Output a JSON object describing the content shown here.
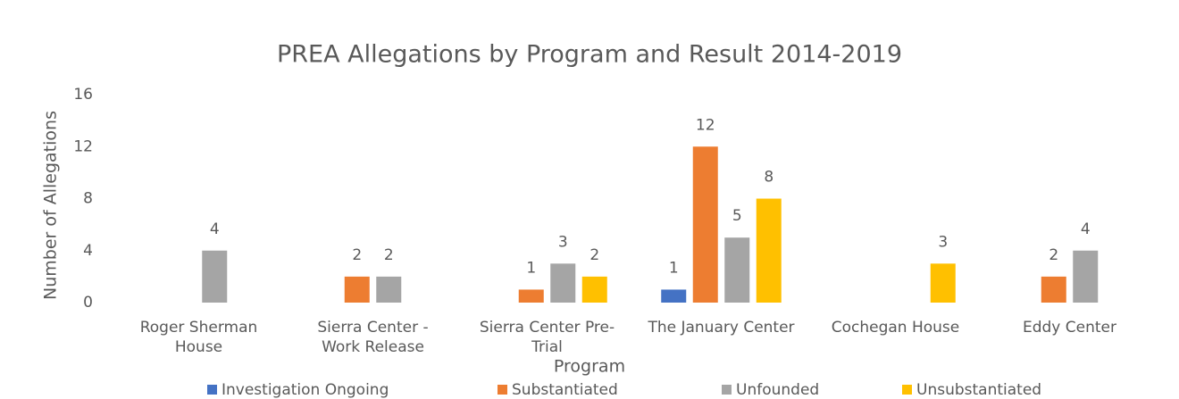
{
  "chart_data": {
    "type": "bar",
    "title": "PREA Allegations by Program and Result 2014-2019",
    "x_label": "Program",
    "y_label": "Number of Allegations",
    "categories": [
      "Roger Sherman House",
      "Sierra Center - Work Release",
      "Sierra Center Pre-Trial",
      "The January Center",
      "Cochegan House",
      "Eddy Center"
    ],
    "series": [
      {
        "name": "Investigation Ongoing",
        "color": "#4472c4",
        "values": [
          null,
          null,
          null,
          1,
          null,
          null
        ]
      },
      {
        "name": "Substantiated",
        "color": "#ed7d31",
        "values": [
          null,
          2,
          1,
          12,
          null,
          2
        ]
      },
      {
        "name": "Unfounded",
        "color": "#a5a5a5",
        "values": [
          4,
          2,
          3,
          5,
          null,
          4
        ]
      },
      {
        "name": "Unsubstantiated",
        "color": "#ffc000",
        "values": [
          null,
          null,
          2,
          8,
          3,
          null
        ]
      }
    ],
    "ylim": [
      0,
      16
    ],
    "yticks": [
      0,
      4,
      8,
      12,
      16
    ],
    "grid": false,
    "legend": "bottom"
  }
}
